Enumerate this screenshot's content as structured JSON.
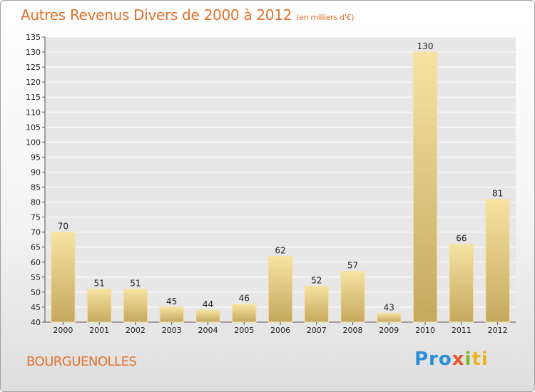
{
  "header": {
    "title": "Autres Revenus Divers de 2000 à 2012",
    "subtitle": "(en milliers d'€)"
  },
  "footer": {
    "commune": "BOURGUENOLLES",
    "logo_parts": [
      "Pro",
      "x",
      "i",
      "ti"
    ]
  },
  "colors": {
    "title": "#e2712a",
    "bar_light": "#f4dc96",
    "bar_dark": "#c9ac62",
    "grid": "#ffffff",
    "plot_bg": "#e6e6e6"
  },
  "chart_data": {
    "type": "bar",
    "title": "Autres Revenus Divers de 2000 à 2012",
    "subtitle": "(en milliers d'€)",
    "xlabel": "",
    "ylabel": "",
    "categories": [
      "2000",
      "2001",
      "2002",
      "2003",
      "2004",
      "2005",
      "2006",
      "2007",
      "2008",
      "2009",
      "2010",
      "2011",
      "2012"
    ],
    "values": [
      70,
      51,
      51,
      45,
      44,
      46,
      62,
      52,
      57,
      43,
      130,
      66,
      81
    ],
    "ylim": [
      40,
      135
    ],
    "yticks": [
      40,
      45,
      50,
      55,
      60,
      65,
      70,
      75,
      80,
      85,
      90,
      95,
      100,
      105,
      110,
      115,
      120,
      125,
      130,
      135
    ],
    "grid": true,
    "legend": "none"
  }
}
